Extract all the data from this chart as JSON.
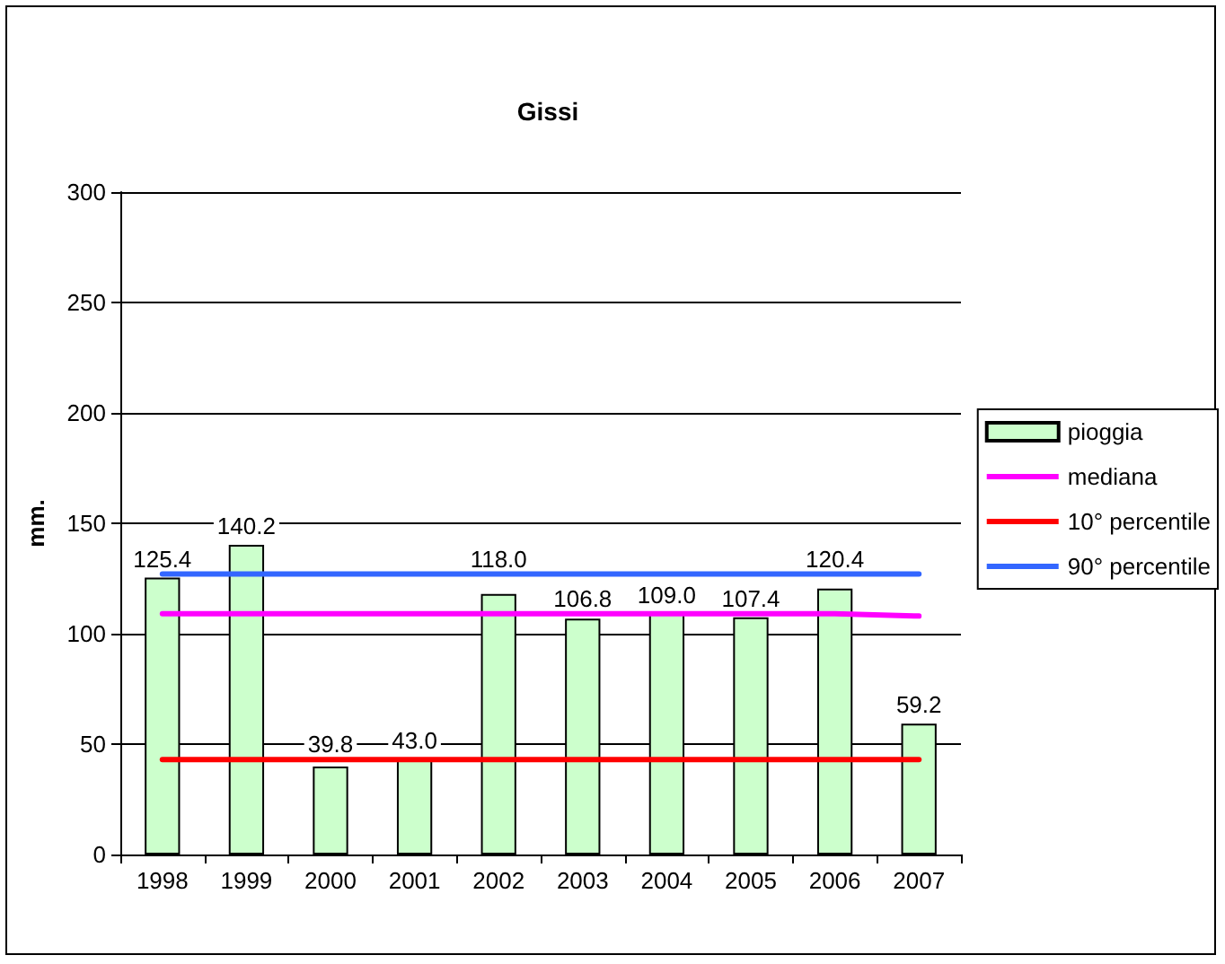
{
  "chart_data": {
    "type": "bar",
    "title": "Gissi",
    "ylabel": "mm.",
    "categories": [
      "1998",
      "1999",
      "2000",
      "2001",
      "2002",
      "2003",
      "2004",
      "2005",
      "2006",
      "2007"
    ],
    "series": [
      {
        "name": "pioggia",
        "color": "#ccffcc",
        "values": [
          125.4,
          140.2,
          39.8,
          43.0,
          118.0,
          106.8,
          109.0,
          107.4,
          120.4,
          59.2
        ],
        "value_labels": [
          "125.4",
          "140.2",
          "39.8",
          "43.0",
          "118.0",
          "106.8",
          "109.0",
          "107.4",
          "120.4",
          "59.2"
        ]
      },
      {
        "name": "mediana",
        "type": "line",
        "color": "#ff00ff",
        "values": [
          109,
          109,
          109,
          109,
          109,
          109,
          109,
          109,
          109,
          108
        ]
      },
      {
        "name": "10° percentile",
        "type": "line",
        "color": "#ff0000",
        "values": [
          43,
          43,
          43,
          43,
          43,
          43,
          43,
          43,
          43,
          43
        ]
      },
      {
        "name": "90° percentile",
        "type": "line",
        "color": "#3366ff",
        "values": [
          127,
          127,
          127,
          127,
          127,
          127,
          127,
          127,
          127,
          127
        ]
      }
    ],
    "ylim": [
      0,
      300
    ],
    "yticks": [
      0,
      50,
      100,
      150,
      200,
      250,
      300
    ],
    "grid": "y",
    "legend": "right",
    "marker": "none"
  }
}
